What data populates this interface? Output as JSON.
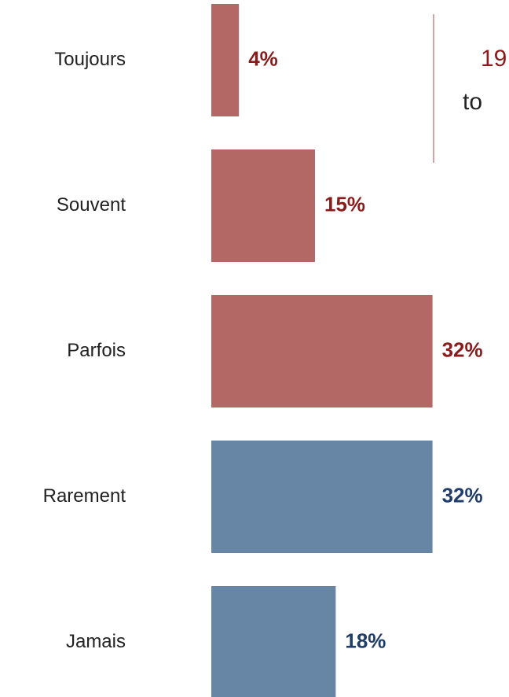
{
  "chart_data": {
    "type": "bar",
    "orientation": "horizontal",
    "categories": [
      "Toujours",
      "Souvent",
      "Parfois",
      "Rarement",
      "Jamais"
    ],
    "values": [
      4,
      15,
      32,
      32,
      18
    ],
    "value_labels": [
      "4%",
      "15%",
      "32%",
      "32%",
      "18%"
    ],
    "colors": [
      "#b36865",
      "#b36865",
      "#b36865",
      "#6786a5",
      "#6786a5"
    ],
    "label_colors": [
      "#8b1a1a",
      "#8b1a1a",
      "#8b1a1a",
      "#1f3d6b",
      "#1f3d6b"
    ],
    "annotation": {
      "lines": [
        "19",
        "to"
      ],
      "colors": [
        "#8b1a1a",
        "#222222"
      ],
      "line_color": "#b36865"
    }
  }
}
